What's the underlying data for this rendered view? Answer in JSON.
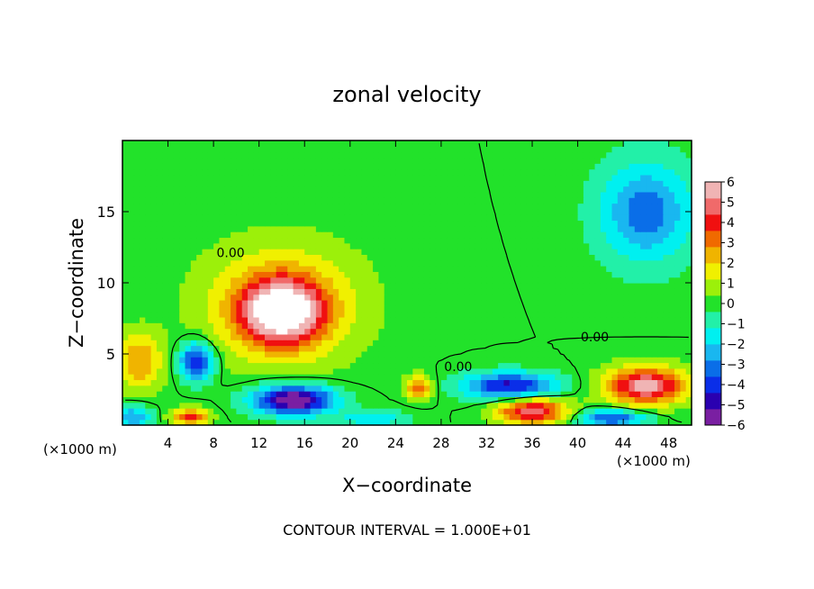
{
  "chart_data": {
    "type": "heatmap",
    "title": "zonal velocity",
    "xlabel": "X−coordinate",
    "ylabel": "Z−coordinate",
    "x_unit_left": "(×1000 m)",
    "x_unit_right": "(×1000 m)",
    "xlim": [
      0,
      50
    ],
    "ylim": [
      0,
      20
    ],
    "x_ticks": [
      4,
      8,
      12,
      16,
      20,
      24,
      28,
      32,
      36,
      40,
      44,
      48
    ],
    "y_ticks": [
      5,
      10,
      15
    ],
    "colorbar": {
      "min": -6,
      "max": 6,
      "tick_labels": [
        "6",
        "5",
        "4",
        "3",
        "2",
        "1",
        "0",
        "−1",
        "−2",
        "−3",
        "−4",
        "−5",
        "−6"
      ],
      "colors": [
        "#7a1fa2",
        "#2a00b0",
        "#0a2ee8",
        "#0a6ee8",
        "#19b7f0",
        "#00f0f0",
        "#22f0a8",
        "#22e22a",
        "#9cf00a",
        "#f0f000",
        "#f0b400",
        "#f06a00",
        "#f01010",
        "#f06a6a",
        "#f0b4b4"
      ]
    },
    "contour_label": "0.00",
    "footer": "CONTOUR INTERVAL = 1.000E+01",
    "features": [
      {
        "x": 14,
        "z": 8,
        "u": 6.5,
        "sx": 3.5,
        "sz": 2.2
      },
      {
        "x": 14,
        "z": 8.5,
        "u": 3.0,
        "sx": 6.5,
        "sz": 4.0
      },
      {
        "x": 46,
        "z": 2.8,
        "u": 6.0,
        "sx": 3.5,
        "sz": 1.3
      },
      {
        "x": 36,
        "z": 1.0,
        "u": 5.5,
        "sx": 3.0,
        "sz": 0.9
      },
      {
        "x": 6,
        "z": 0.6,
        "u": 4.0,
        "sx": 1.6,
        "sz": 0.6
      },
      {
        "x": 26,
        "z": 2.7,
        "u": 3.5,
        "sx": 1.2,
        "sz": 0.8
      },
      {
        "x": 1.5,
        "z": 4.5,
        "u": 3.0,
        "sx": 2.0,
        "sz": 2.0
      },
      {
        "x": 15,
        "z": 1.8,
        "u": -7.0,
        "sx": 3.5,
        "sz": 1.0
      },
      {
        "x": 34,
        "z": 2.8,
        "u": -5.0,
        "sx": 4.0,
        "sz": 0.9
      },
      {
        "x": 6.5,
        "z": 4.5,
        "u": -5.0,
        "sx": 1.5,
        "sz": 1.3
      },
      {
        "x": 46,
        "z": 15,
        "u": -3.5,
        "sx": 4.0,
        "sz": 3.5
      },
      {
        "x": 43,
        "z": 0.5,
        "u": -4.0,
        "sx": 3.0,
        "sz": 0.6
      },
      {
        "x": 1,
        "z": 0.6,
        "u": -3.0,
        "sx": 1.5,
        "sz": 0.8
      },
      {
        "x": 22,
        "z": 0.5,
        "u": -2.0,
        "sx": 3.0,
        "sz": 0.6
      }
    ]
  }
}
